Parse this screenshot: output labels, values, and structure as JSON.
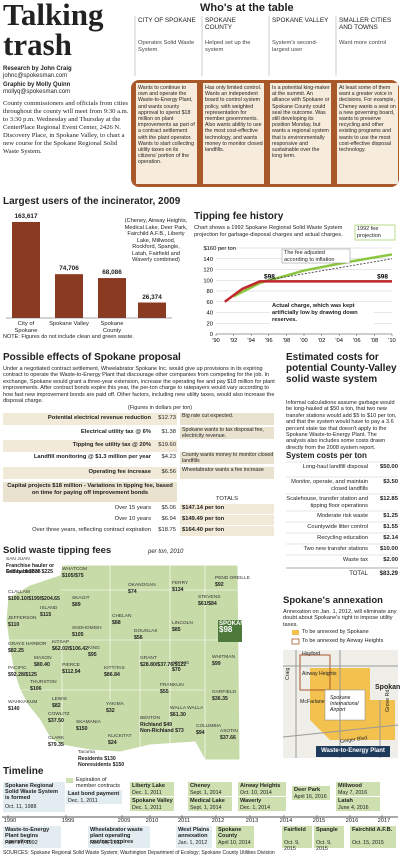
{
  "header": {
    "title": "Talking trash",
    "credits": [
      "Research by John Craig",
      "johnc@spokesman.com",
      "Graphic by Molly Quinn",
      "mollyq@spokesman.com"
    ],
    "intro": "County commissioners and officials from cities throughout the county will meet from 9:30 a.m. to 3:30 p.m. Wednesday and Thursday at the CenterPlace Regional Event Center, 2426 N. Discovery Place, in Spokane Valley, to chart a new course for the Spokane Regional Solid Waste System."
  },
  "table_section": {
    "title": "Who's at the table",
    "parties": [
      {
        "name": "CITY OF SPOKANE",
        "role": "Operates Solid Waste System",
        "position": "Wants to continue to own and operate the Waste-to-Energy Plant, and wants county approval to spend $18 million on plant improvements as part of a contract settlement with the plant operator. Wants to start collecting utility taxes on its citizens' portion of the operation."
      },
      {
        "name": "SPOKANE COUNTY",
        "role": "Helped set up the system",
        "position": "Has only limited control. Wants an independent board to control system policy, with weighted representation for member governments. Also wants ability to use the most cost-effective technology, and wants money to monitor closed landfills."
      },
      {
        "name": "SPOKANE VALLEY",
        "role": "System's second-largest user",
        "position": "Is a potential king-maker at the summit. An alliance with Spokane or Spokane County could seal the outcome. Was still developing its position Monday, but wants a regional system that is environmentally responsive and sustainable over the long term."
      },
      {
        "name": "SMALLER CITIES AND TOWNS",
        "role": "Want more control",
        "position": "At least some of them want a greater voice in decisions. For example, Cheney wants a seat on a new governing board, wants to preserve recycling and other existing programs and wants to use the most cost-effective disposal technology."
      }
    ]
  },
  "chart_data": [
    {
      "type": "bar",
      "title": "Largest users of the incinerator, 2009",
      "categories": [
        "City of Spokane",
        "Spokane Valley",
        "Spokane County",
        "(Cheney, Airway Heights, Medical Lake, Deer Park, Fairchild A.F.B., Liberty Lake, Millwood, Rockford, Spangle, Latah, Fairfield and Waverly combined)"
      ],
      "values": [
        163617,
        74706,
        68086,
        26374
      ],
      "value_labels": [
        "163,617",
        "74,706",
        "68,086",
        "26,374"
      ],
      "color": "#8b3a22",
      "note": "NOTE: Figures do not include clean and green waste."
    },
    {
      "type": "line",
      "title": "Tipping fee history",
      "subtitle": "Chart shows a 1992 Spokane Regional Solid Waste System projection for garbage-disposal charges and actual charges.",
      "xlim": [
        1990,
        2010
      ],
      "ylim": [
        0,
        160
      ],
      "grid": true,
      "yticks": [
        0,
        20,
        40,
        60,
        80,
        100,
        120,
        140,
        {
          "value": 160,
          "label": "$160 per ton"
        }
      ],
      "xticks": [
        {
          "value": 1990,
          "label": "'90"
        },
        {
          "value": 1992,
          "label": "'92"
        },
        {
          "value": 1994,
          "label": "'94"
        },
        {
          "value": 1996,
          "label": "'96"
        },
        {
          "value": 1998,
          "label": "'98"
        },
        {
          "value": 2000,
          "label": "'00"
        },
        {
          "value": 2002,
          "label": "'02"
        },
        {
          "value": 2004,
          "label": "'04"
        },
        {
          "value": 2006,
          "label": "'06"
        },
        {
          "value": 2008,
          "label": "'08"
        },
        {
          "value": 2010,
          "label": "'10"
        }
      ],
      "series": [
        {
          "name": "1992 fee projection",
          "color": "#8cc63f",
          "x": [
            1992,
            1995,
            2000,
            2005,
            2010
          ],
          "values": [
            70,
            95,
            118,
            134,
            148
          ]
        },
        {
          "name": "The fee adjusted according to inflation",
          "color": "#444444",
          "dashed": true,
          "x": [
            1995,
            2000,
            2005,
            2010
          ],
          "values": [
            98,
            112,
            126,
            140
          ]
        },
        {
          "name": "Actual charge, which was kept artificially low by drawing down reserves.",
          "color": "#c1272d",
          "x": [
            1991,
            1992,
            1993,
            1995,
            2010
          ],
          "values": [
            60,
            72,
            84,
            98,
            98
          ],
          "value_labels": [
            null,
            null,
            null,
            "$98",
            "$98"
          ]
        }
      ]
    }
  ],
  "proposal": {
    "title": "Possible effects of Spokane proposal",
    "intro": "Under a negotiated contract settlement, Wheelabrator Spokane Inc. would give up provisions in its expiring contract to operate the Waste-to-Energy Plant that discourage other companies from competing for the job. In exchange, Spokane would grant a three-year extension, increase the operating fee and pay $18 million for plant improvements. After contract bonds expire this year, the per-ton charge to ratepayers would vary according to how fast new improvement bonds are paid off. Other factors, including new utility taxes, would also increase the disposal charge.",
    "units_note": "(Figures in dollars per ton)",
    "rows": [
      {
        "label": "Potential electrical revenue reduction",
        "value": "$12.73",
        "note": "Big rate cut expected."
      },
      {
        "label": "Electrical utility tax @ 6%",
        "value": "$1.38",
        "note": "Spokane wants to tax disposal fee, electricity revenue."
      },
      {
        "label": "Tipping fee utility tax @ 20%",
        "value": "$19.60",
        "note": null
      },
      {
        "label": "Landfill monitoring @ $1.3 million per year",
        "value": "$4.23",
        "note": "County wants money to monitor closed landfills"
      },
      {
        "label": "Operating fee increase",
        "value": "$6.56",
        "note": "Wheelabrator wants a fee increase"
      }
    ],
    "capital": {
      "label": "Capital projects $18 million - Variations in tipping fee, based on time for paying off improvement bonds",
      "totals_header": "TOTALS",
      "rows": [
        {
          "label": "Over 15 years",
          "value": "$5.06",
          "total": "$147.14 per ton"
        },
        {
          "label": "Over 10 years",
          "value": "$6.94",
          "total": "$149.49 per ton"
        },
        {
          "label": "Over three years, reflecting contract expiration",
          "value": "$18.75",
          "total": "$164.40 per ton"
        }
      ]
    }
  },
  "costs": {
    "title": "Estimated costs for potential County-Valley solid waste system",
    "intro": "Informal calculations assume garbage would be long-hauled at $50 a ton, that two new transfer stations would add $5 to $10 per ton, and that the system would have to pay a 3.6 percent state tax that doesn't apply to the Spokane Waste-to-Energy Plant. The analysis also includes some costs drawn directly from the 2008 system report.",
    "subtitle": "System costs per ton",
    "rows": [
      {
        "label": "Long-haul landfill disposal",
        "value": "$50.00"
      },
      {
        "label": "Monitor, operate, and maintain closed landfills",
        "value": "$3.50"
      },
      {
        "label": "Scalehouse, transfer station and tipping floor operations",
        "value": "$12.85"
      },
      {
        "label": "Moderate risk waste",
        "value": "$1.25"
      },
      {
        "label": "Countywide litter control",
        "value": "$1.55"
      },
      {
        "label": "Recycling education",
        "value": "$2.14"
      },
      {
        "label": "Two new transfer stations",
        "value": "$10.00"
      },
      {
        "label": "Waste tax",
        "value": "$2.00"
      }
    ],
    "total": {
      "label": "TOTAL",
      "value": "$83.29"
    }
  },
  "fee_map": {
    "title": "Solid waste tipping fees",
    "subtitle": "per ton, 2010",
    "counties": [
      {
        "name": "SAN JUAN",
        "fees": [
          "Franchise hauler or Friday Harbor $225",
          "Self haul $335"
        ]
      },
      {
        "name": "WHATCOM",
        "fees": [
          "$105/$75"
        ]
      },
      {
        "name": "ISLAND",
        "fees": [
          "$115"
        ]
      },
      {
        "name": "SKAGIT",
        "fees": [
          "$89"
        ]
      },
      {
        "name": "CLALLAM",
        "fees": [
          "$100.10/$199/$204.65"
        ]
      },
      {
        "name": "OKANOGAN",
        "fees": [
          "$74"
        ]
      },
      {
        "name": "FERRY",
        "fees": [
          "$134"
        ]
      },
      {
        "name": "STEVENS",
        "fees": [
          "$61/$84"
        ]
      },
      {
        "name": "PEND OREILLE",
        "fees": [
          "$92"
        ]
      },
      {
        "name": "SNOHOMISH",
        "fees": [
          "$105"
        ]
      },
      {
        "name": "JEFFERSON",
        "fees": [
          "$110"
        ]
      },
      {
        "name": "KITSAP",
        "fees": [
          "$62.02/$106.42"
        ]
      },
      {
        "name": "KING",
        "fees": [
          "$95"
        ]
      },
      {
        "name": "CHELAN",
        "fees": [
          "$88"
        ]
      },
      {
        "name": "DOUGLAS",
        "fees": [
          "$56"
        ]
      },
      {
        "name": "LINCOLN",
        "fees": [
          "$85"
        ]
      },
      {
        "name": "SPOKANE",
        "fees": [
          "$98"
        ]
      },
      {
        "name": "GRAYS HARBOR",
        "fees": [
          "$82.25"
        ]
      },
      {
        "name": "MASON",
        "fees": [
          "$80.40"
        ]
      },
      {
        "name": "THURSTON",
        "fees": [
          "$106"
        ]
      },
      {
        "name": "PIERCE",
        "fees": [
          "$112.94"
        ]
      },
      {
        "name": "KITTITAS",
        "fees": [
          "$86.84"
        ]
      },
      {
        "name": "GRANT",
        "fees": [
          "$28.80/$37.76/$122"
        ]
      },
      {
        "name": "ADAMS",
        "fees": [
          "$70"
        ]
      },
      {
        "name": "WHITMAN",
        "fees": [
          "$99"
        ]
      },
      {
        "name": "PACIFIC",
        "fees": [
          "$92.28/$125"
        ]
      },
      {
        "name": "LEWIS",
        "fees": [
          "$82"
        ]
      },
      {
        "name": "WAHKIAKUM",
        "fees": [
          "$140"
        ]
      },
      {
        "name": "COWLITZ",
        "fees": [
          "$37.50"
        ]
      },
      {
        "name": "SKAMANIA",
        "fees": [
          "$150"
        ]
      },
      {
        "name": "YAKIMA",
        "fees": [
          "$32"
        ]
      },
      {
        "name": "FRANKLIN",
        "fees": [
          "$55"
        ]
      },
      {
        "name": "BENTON",
        "fees": [
          "Richland $49",
          "Non-Richland $73"
        ]
      },
      {
        "name": "WALLA WALLA",
        "fees": [
          "$61.30"
        ]
      },
      {
        "name": "COLUMBIA",
        "fees": [
          "$94"
        ]
      },
      {
        "name": "GARFIELD",
        "fees": [
          "$36.35"
        ]
      },
      {
        "name": "ASOTIN",
        "fees": [
          "$37.66"
        ]
      },
      {
        "name": "KLICKITAT",
        "fees": [
          "$24"
        ]
      },
      {
        "name": "CLARK",
        "fees": [
          "$79.35"
        ]
      },
      {
        "name": "Tacoma",
        "fees": [
          "Residents $130",
          "Nonresidents $150"
        ]
      }
    ]
  },
  "annexation": {
    "title": "Spokane's annexation",
    "text": "Annexation on Jan. 1, 2012, will eliminate any doubt about Spokane's right to impose utility taxes.",
    "legend": [
      "To be annexed by Spokane",
      "To be annexed by Airway Heights"
    ],
    "places": [
      "Craig",
      "Hayford",
      "Airway Heights",
      "McFarlane",
      "Spokane International Airport",
      "Spokane",
      "Geiger Blvd.",
      "Grove Rd."
    ],
    "plant": "Waste-to-Energy Plant"
  },
  "timeline": {
    "title": "Timeline",
    "legend": "Expiration of member contracts",
    "axis": [
      "1990",
      "1999",
      "2009",
      "2010",
      "2011",
      "2012",
      "2013",
      "2014",
      "2015",
      "2016",
      "2017"
    ],
    "top": [
      {
        "label": "Spokane Regional Solid Waste System is formed",
        "date": "Oct. 11, 1988"
      },
      {
        "label": "Last bond payment",
        "date": "Dec. 1, 2011"
      },
      {
        "label": "Liberty Lake",
        "date": "Dec. 1, 2011"
      },
      {
        "label": "Spokane Valley",
        "date": "Dec. 1, 2011"
      },
      {
        "label": "Cheney",
        "date": "Sept. 1, 2014"
      },
      {
        "label": "Medical Lake",
        "date": "Sept. 1, 2014"
      },
      {
        "label": "Airway Heights",
        "date": "Oct. 10, 2014"
      },
      {
        "label": "Waverly",
        "date": "Dec. 1, 2014"
      },
      {
        "label": "Deer Park",
        "date": "April 16, 2016"
      },
      {
        "label": "Millwood",
        "date": "May 7, 2016"
      },
      {
        "label": "Latah",
        "date": "June 4, 2016"
      }
    ],
    "bottom": [
      {
        "label": "Waste-to-Energy Plant begins operation",
        "date": "Feb. 17, 1992"
      },
      {
        "label": "Wheelabrator waste plant operating contract expires",
        "date": "Nov. 16, 2011"
      },
      {
        "label": "West Plains annexation",
        "date": "Jan. 1, 2012"
      },
      {
        "label": "Spokane County",
        "date": "April 10, 2014"
      },
      {
        "label": "Fairfield",
        "date": "Oct. 9, 2015"
      },
      {
        "label": "Spangle",
        "date": "Oct. 9, 2015"
      },
      {
        "label": "Fairchild A.F.B.",
        "date": "Oct. 15, 2015"
      }
    ]
  },
  "sources": "SOURCES: Spokane Regional Solid Waste System; Washington Department of Ecology; Spokane County Utilities Division"
}
